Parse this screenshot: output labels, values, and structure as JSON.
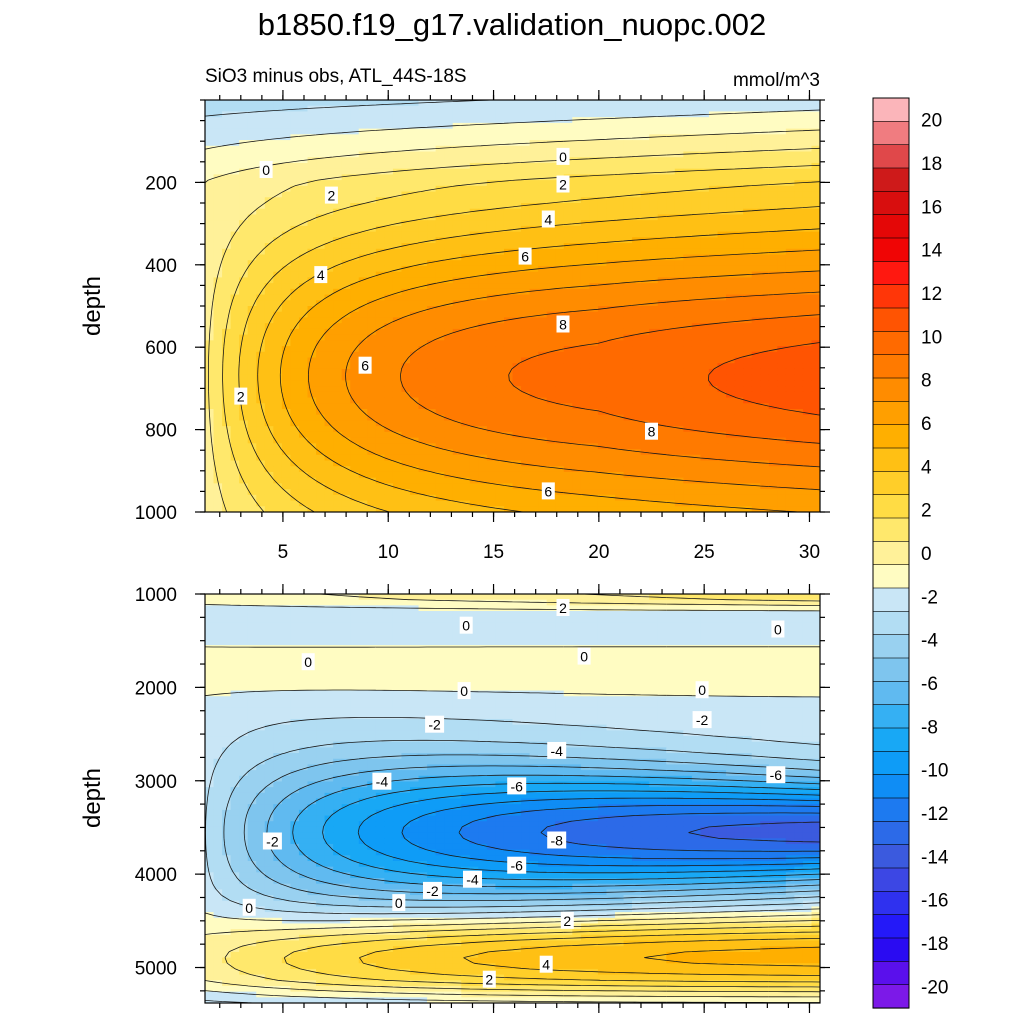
{
  "figure": {
    "title": "b1850.f19_g17.validation_nuopc.002",
    "subtitle_left": "SiO3 minus obs, ATL_44S-18S",
    "subtitle_right": "mmol/m^3"
  },
  "chart_data": [
    {
      "type": "contour",
      "panel": "upper",
      "ylabel": "depth",
      "xlabel": "",
      "xlim": [
        1.3,
        30.5
      ],
      "ylim": [
        1000,
        0
      ],
      "xticks": [
        5,
        10,
        15,
        20,
        25,
        30
      ],
      "xtick_labels": [
        "5",
        "10",
        "15",
        "20",
        "25",
        "30"
      ],
      "yticks": [
        200,
        400,
        600,
        800,
        1000
      ],
      "ytick_labels": [
        "200",
        "400",
        "600",
        "800",
        "1000"
      ],
      "contour_interval": 1,
      "contour_labels": [
        {
          "text": "0",
          "x": 4.2,
          "y": 170
        },
        {
          "text": "0",
          "x": 18.3,
          "y": 138
        },
        {
          "text": "2",
          "x": 7.3,
          "y": 232
        },
        {
          "text": "2",
          "x": 18.3,
          "y": 205
        },
        {
          "text": "4",
          "x": 17.6,
          "y": 290
        },
        {
          "text": "4",
          "x": 6.8,
          "y": 425
        },
        {
          "text": "6",
          "x": 16.5,
          "y": 380
        },
        {
          "text": "6",
          "x": 8.9,
          "y": 645
        },
        {
          "text": "6",
          "x": 17.6,
          "y": 950
        },
        {
          "text": "8",
          "x": 18.3,
          "y": 545
        },
        {
          "text": "8",
          "x": 22.5,
          "y": 805
        },
        {
          "text": "2",
          "x": 3.0,
          "y": 720
        }
      ],
      "features": {
        "max_value_approx": 10,
        "max_location": {
          "x": 28,
          "y": 640
        },
        "surface_value_approx": -1
      }
    },
    {
      "type": "contour",
      "panel": "lower",
      "ylabel": "depth",
      "xlabel": "",
      "xlim": [
        1.3,
        30.5
      ],
      "ylim": [
        5380,
        1000
      ],
      "yticks": [
        1000,
        2000,
        3000,
        4000,
        5000
      ],
      "ytick_labels": [
        "1000",
        "2000",
        "3000",
        "4000",
        "5000"
      ],
      "contour_interval": 1,
      "contour_labels": [
        {
          "text": "2",
          "x": 18.3,
          "y": 1150
        },
        {
          "text": "0",
          "x": 13.7,
          "y": 1340
        },
        {
          "text": "0",
          "x": 28.5,
          "y": 1380
        },
        {
          "text": "0",
          "x": 6.2,
          "y": 1730
        },
        {
          "text": "0",
          "x": 19.3,
          "y": 1670
        },
        {
          "text": "0",
          "x": 13.6,
          "y": 2040
        },
        {
          "text": "0",
          "x": 24.9,
          "y": 2030
        },
        {
          "text": "-2",
          "x": 12.2,
          "y": 2400
        },
        {
          "text": "-2",
          "x": 24.9,
          "y": 2350
        },
        {
          "text": "-4",
          "x": 18.0,
          "y": 2680
        },
        {
          "text": "-4",
          "x": 9.7,
          "y": 3010
        },
        {
          "text": "-6",
          "x": 16.1,
          "y": 3060
        },
        {
          "text": "-6",
          "x": 28.4,
          "y": 2940
        },
        {
          "text": "-8",
          "x": 18.0,
          "y": 3640
        },
        {
          "text": "-2",
          "x": 4.5,
          "y": 3650
        },
        {
          "text": "-6",
          "x": 16.1,
          "y": 3910
        },
        {
          "text": "-4",
          "x": 14.0,
          "y": 4060
        },
        {
          "text": "-2",
          "x": 12.1,
          "y": 4180
        },
        {
          "text": "0",
          "x": 10.5,
          "y": 4310
        },
        {
          "text": "0",
          "x": 3.4,
          "y": 4360
        },
        {
          "text": "2",
          "x": 18.5,
          "y": 4500
        },
        {
          "text": "4",
          "x": 17.5,
          "y": 4970
        },
        {
          "text": "2",
          "x": 14.8,
          "y": 5130
        }
      ],
      "features": {
        "min_value_approx": -11,
        "min_location": {
          "x": 30,
          "y": 3650
        },
        "max_value_approx": 6,
        "max_location": {
          "x": 30,
          "y": 4850
        }
      }
    }
  ],
  "colorbar": {
    "min": -21,
    "max": 21,
    "step": 2,
    "labels": [
      {
        "text": "20",
        "value": 20
      },
      {
        "text": "18",
        "value": 18
      },
      {
        "text": "16",
        "value": 16
      },
      {
        "text": "14",
        "value": 14
      },
      {
        "text": "12",
        "value": 12
      },
      {
        "text": "10",
        "value": 10
      },
      {
        "text": "8",
        "value": 8
      },
      {
        "text": "6",
        "value": 6
      },
      {
        "text": "4",
        "value": 4
      },
      {
        "text": "2",
        "value": 2
      },
      {
        "text": "0",
        "value": 0
      },
      {
        "text": "-2",
        "value": -2
      },
      {
        "text": "-4",
        "value": -4
      },
      {
        "text": "-6",
        "value": -6
      },
      {
        "text": "-8",
        "value": -8
      },
      {
        "text": "-10",
        "value": -10
      },
      {
        "text": "-12",
        "value": -12
      },
      {
        "text": "-14",
        "value": -14
      },
      {
        "text": "-16",
        "value": -16
      },
      {
        "text": "-18",
        "value": -18
      },
      {
        "text": "-20",
        "value": -20
      }
    ],
    "colors": [
      "#FBB5BA",
      "#F07C80",
      "#E0484A",
      "#CE1A1A",
      "#D80E0E",
      "#E40707",
      "#F00505",
      "#FF1810",
      "#FF3608",
      "#FF5402",
      "#FF6A00",
      "#FF7A00",
      "#FF8C00",
      "#FF9F00",
      "#FFAF00",
      "#FFC014",
      "#FFCE29",
      "#FFDC44",
      "#FFE86C",
      "#FFF199",
      "#FFFCC2",
      "#C9E6F6",
      "#B2DDF3",
      "#99D1F0",
      "#7EC5EE",
      "#60BAF0",
      "#35B0F3",
      "#18A8F5",
      "#0E9CF7",
      "#0F8DF5",
      "#1D7AF0",
      "#2C6AE8",
      "#3B5ADE",
      "#3C47E4",
      "#2F31EF",
      "#2419F8",
      "#2A0BF2",
      "#5A10EC",
      "#7C19E8"
    ]
  },
  "colors": {
    "line": "#1a1a1a",
    "label_bg": "#ffffff"
  }
}
